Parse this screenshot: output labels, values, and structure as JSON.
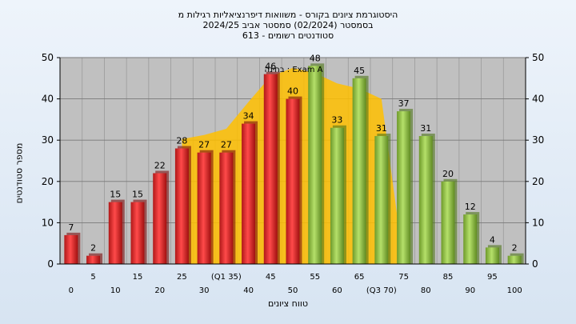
{
  "header": {
    "title_line1": "היסטוגרמת ציונים בקורס - משוואות דיפרנציאליות רגילות מ",
    "title_line2": "בסמסטר  (02/2024)  סמסטר אביב 2024/25",
    "title_line3": "סטודנטים רשומים - 613"
  },
  "chart_data": {
    "type": "bar",
    "title": "היסטוגרמת ציונים בקורס - משוואות דיפרנציאליות רגילות מ",
    "xlabel": "טווח ציונים",
    "ylabel": "מספר סטודנטים",
    "ylim": [
      0,
      50
    ],
    "yticks": [
      0,
      10,
      20,
      30,
      40,
      50
    ],
    "grid": true,
    "categories": [
      "0",
      "5",
      "10",
      "15",
      "20",
      "25",
      "30",
      "35",
      "40",
      "45",
      "50",
      "55",
      "60",
      "65",
      "70",
      "75",
      "80",
      "85",
      "90",
      "95",
      "100"
    ],
    "values": [
      7,
      2,
      15,
      15,
      22,
      28,
      27,
      27,
      34,
      46,
      40,
      48,
      33,
      45,
      31,
      37,
      31,
      20,
      12,
      4,
      2
    ],
    "bar_colors": [
      "red",
      "red",
      "red",
      "red",
      "red",
      "red",
      "red",
      "red",
      "red",
      "red",
      "red",
      "green",
      "green",
      "green",
      "green",
      "green",
      "green",
      "green",
      "green",
      "green",
      "green"
    ],
    "xtick_labels_lower": [
      "0",
      "10",
      "20",
      "30",
      "40",
      "50",
      "60",
      "(Q3 70)",
      "80",
      "90",
      "100"
    ],
    "xtick_labels_upper": [
      "5",
      "15",
      "25",
      "(Q1 35)",
      "45",
      "55",
      "65",
      "75",
      "85",
      "95"
    ],
    "annotation": "בחינה : Exam A",
    "colors": {
      "red": "#e52b2b",
      "green": "#8fbf3f",
      "distribution": "#ffc000",
      "plot_bg": "#c0c0c0"
    }
  }
}
